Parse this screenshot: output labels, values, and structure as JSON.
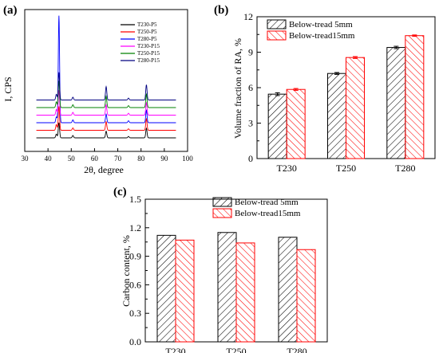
{
  "colors": {
    "black": "#000000",
    "red": "#ff0000",
    "blue": "#0000ff",
    "magenta": "#ff00ff",
    "green": "#008000",
    "navy": "#000080"
  },
  "chart_data": [
    {
      "panel_label": "(a)",
      "type": "line",
      "xlabel": "2θ, degree",
      "ylabel": "I, CPS",
      "xlim": [
        30,
        100
      ],
      "xticks": [
        "30",
        "40",
        "50",
        "60",
        "70",
        "80",
        "90",
        "100"
      ],
      "peak_positions": [
        43.6,
        44.7,
        50.7,
        65.0,
        74.6,
        82.3
      ],
      "series": [
        {
          "name": "T230-P5",
          "color": "#000000",
          "baseline": 0.0,
          "peak_heights": [
            0.4,
            1.6,
            0.25,
            0.7,
            0.15,
            1.0
          ]
        },
        {
          "name": "T250-P5",
          "color": "#ff0000",
          "baseline": 1.0,
          "peak_heights": [
            0.6,
            2.5,
            0.25,
            0.9,
            0.15,
            1.2
          ]
        },
        {
          "name": "T280-P5",
          "color": "#0000ff",
          "baseline": 2.0,
          "peak_heights": [
            0.6,
            11.2,
            0.3,
            0.9,
            0.2,
            1.3
          ]
        },
        {
          "name": "T230-P15",
          "color": "#ff00ff",
          "baseline": 3.0,
          "peak_heights": [
            0.6,
            2.6,
            0.3,
            1.1,
            0.2,
            1.3
          ]
        },
        {
          "name": "T250-P15",
          "color": "#008000",
          "baseline": 4.0,
          "peak_heights": [
            0.6,
            2.8,
            0.3,
            1.2,
            0.2,
            1.4
          ]
        },
        {
          "name": "T280-P15",
          "color": "#000080",
          "baseline": 5.0,
          "peak_heights": [
            0.6,
            2.9,
            0.3,
            1.4,
            0.2,
            1.6
          ]
        }
      ]
    },
    {
      "panel_label": "(b)",
      "type": "bar",
      "categories": [
        "T230",
        "T250",
        "T280"
      ],
      "ylabel": "Volume fraction of RA, %",
      "ylim": [
        0,
        12
      ],
      "yticks": [
        "0",
        "3",
        "6",
        "9",
        "12"
      ],
      "series": [
        {
          "name": "Below-tread 5mm",
          "color": "#000000",
          "values": [
            5.45,
            7.2,
            9.4
          ],
          "errors": [
            0.12,
            0.08,
            0.1
          ]
        },
        {
          "name": "Below-tread15mm",
          "color": "#ff0000",
          "values": [
            5.85,
            8.55,
            10.4
          ],
          "errors": [
            0.08,
            0.08,
            0.06
          ]
        }
      ]
    },
    {
      "panel_label": "(c)",
      "type": "bar",
      "categories": [
        "T230",
        "T250",
        "T280"
      ],
      "ylabel": "Carbon content, %",
      "ylim": [
        0,
        1.5
      ],
      "yticks": [
        "0.0",
        "0.3",
        "0.6",
        "0.9",
        "1.2",
        "1.5"
      ],
      "series": [
        {
          "name": "Below-tread 5mm",
          "color": "#000000",
          "values": [
            1.12,
            1.15,
            1.1
          ]
        },
        {
          "name": "Below-tread15mm",
          "color": "#ff0000",
          "values": [
            1.07,
            1.04,
            0.97
          ]
        }
      ]
    }
  ]
}
